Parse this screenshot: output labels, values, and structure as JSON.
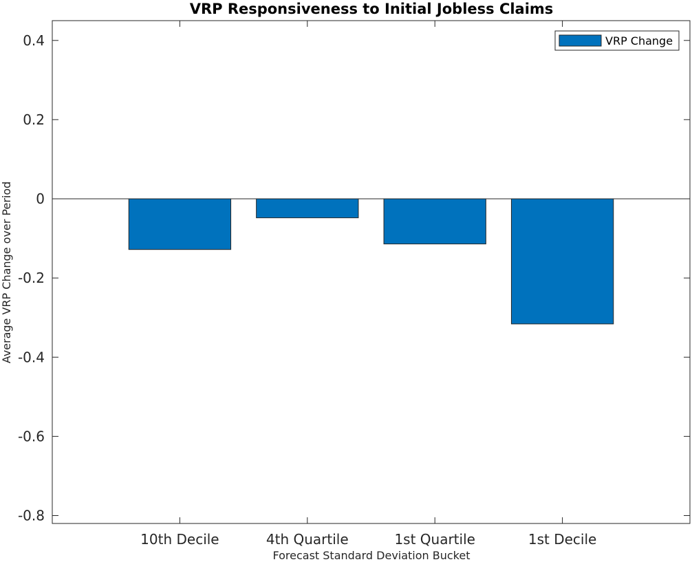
{
  "chart_data": {
    "type": "bar",
    "title": "VRP Responsiveness to Initial Jobless Claims",
    "xlabel": "Forecast Standard Deviation Bucket",
    "ylabel": "Average VRP Change over Period",
    "categories": [
      "10th Decile",
      "4th Quartile",
      "1st Quartile",
      "1st Decile"
    ],
    "series": [
      {
        "name": "VRP Change",
        "values": [
          -0.128,
          -0.048,
          -0.114,
          -0.316
        ],
        "color": "#0072BD"
      }
    ],
    "ylim": [
      -0.82,
      0.45
    ],
    "yticks": [
      0.4,
      0.2,
      0,
      -0.2,
      -0.4,
      -0.6,
      -0.8
    ],
    "ytick_labels": [
      "0.4",
      "0.2",
      "0",
      "-0.2",
      "-0.4",
      "-0.6",
      "-0.8"
    ],
    "legend_position": "top-right",
    "grid": false
  }
}
